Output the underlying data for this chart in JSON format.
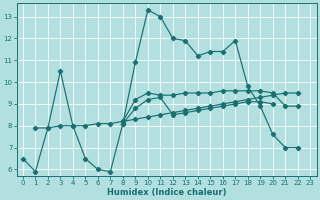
{
  "xlabel": "Humidex (Indice chaleur)",
  "xlim": [
    -0.5,
    23.5
  ],
  "ylim": [
    5.7,
    13.6
  ],
  "xticks": [
    0,
    1,
    2,
    3,
    4,
    5,
    6,
    7,
    8,
    9,
    10,
    11,
    12,
    13,
    14,
    15,
    16,
    17,
    18,
    19,
    20,
    21,
    22,
    23
  ],
  "yticks": [
    6,
    7,
    8,
    9,
    10,
    11,
    12,
    13
  ],
  "bg_color": "#b2dfdf",
  "grid_color": "#ffffff",
  "line_color": "#1a7070",
  "line1_x": [
    0,
    1,
    2,
    3,
    4,
    5,
    6,
    7,
    8,
    9,
    10,
    11,
    12,
    13,
    14,
    15,
    16,
    17,
    18,
    19,
    20,
    21,
    22
  ],
  "line1_y": [
    6.5,
    5.9,
    7.9,
    10.5,
    8.0,
    6.5,
    6.0,
    5.9,
    8.1,
    10.9,
    13.3,
    13.0,
    12.0,
    11.9,
    11.2,
    11.4,
    11.4,
    11.9,
    9.8,
    8.9,
    7.6,
    7.0,
    7.0
  ],
  "line2_x": [
    8,
    9,
    10,
    11,
    12,
    13,
    14,
    15,
    16,
    17,
    18,
    19,
    20,
    21,
    22
  ],
  "line2_y": [
    8.2,
    9.2,
    9.5,
    9.4,
    9.4,
    9.5,
    9.5,
    9.5,
    9.6,
    9.6,
    9.6,
    9.6,
    9.5,
    8.9,
    8.9
  ],
  "line3_x": [
    1,
    2,
    3,
    4,
    5,
    6,
    7,
    8,
    9,
    10,
    11,
    12,
    13,
    14,
    15,
    16,
    17,
    18,
    19,
    20,
    21,
    22
  ],
  "line3_y": [
    7.9,
    7.9,
    8.0,
    8.0,
    8.0,
    8.1,
    8.1,
    8.2,
    8.3,
    8.4,
    8.5,
    8.6,
    8.7,
    8.8,
    8.9,
    9.0,
    9.1,
    9.2,
    9.3,
    9.4,
    9.5,
    9.5
  ],
  "line4_x": [
    8,
    9,
    10,
    11,
    12,
    13,
    14,
    15,
    16,
    17,
    18,
    19,
    20
  ],
  "line4_y": [
    8.1,
    8.8,
    9.2,
    9.3,
    8.5,
    8.6,
    8.7,
    8.8,
    8.9,
    9.0,
    9.1,
    9.1,
    9.0
  ]
}
